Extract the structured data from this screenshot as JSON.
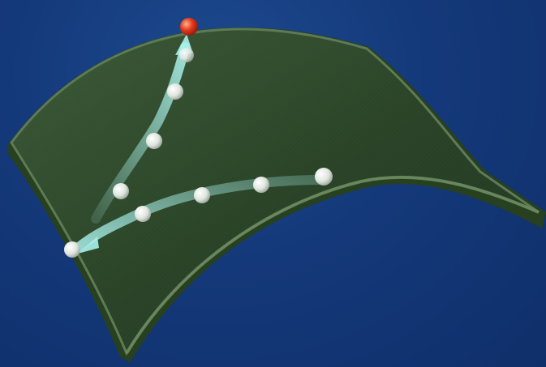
{
  "scene": {
    "colors": {
      "background_top": "#1c4a8e",
      "background_bottom": "#0f2f6a",
      "surface": "#2f4a2c",
      "surface_edge": "#4f6b46",
      "surface_rim": "#6c8a61",
      "path": "#8fe6e0",
      "ball": "#e9efe9",
      "ball_start": "#ffffff",
      "ball_goal": "#e0331f"
    },
    "surface_shape": "saddle",
    "paths": [
      {
        "label": "",
        "direction": "toward-left-corner",
        "balls": 5
      },
      {
        "label": "",
        "direction": "toward-top-goal",
        "balls": 5
      }
    ],
    "goal_marker": {
      "label": "",
      "color_name": "red"
    },
    "start_marker": {
      "label": "",
      "color_name": "white"
    }
  }
}
